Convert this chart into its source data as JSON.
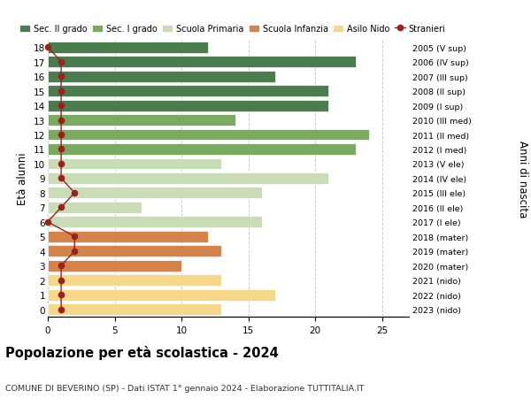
{
  "ages": [
    18,
    17,
    16,
    15,
    14,
    13,
    12,
    11,
    10,
    9,
    8,
    7,
    6,
    5,
    4,
    3,
    2,
    1,
    0
  ],
  "years": [
    "2005 (V sup)",
    "2006 (IV sup)",
    "2007 (III sup)",
    "2008 (II sup)",
    "2009 (I sup)",
    "2010 (III med)",
    "2011 (II med)",
    "2012 (I med)",
    "2013 (V ele)",
    "2014 (IV ele)",
    "2015 (III ele)",
    "2016 (II ele)",
    "2017 (I ele)",
    "2018 (mater)",
    "2019 (mater)",
    "2020 (mater)",
    "2021 (nido)",
    "2022 (nido)",
    "2023 (nido)"
  ],
  "values": [
    12,
    23,
    17,
    21,
    21,
    14,
    24,
    23,
    13,
    21,
    16,
    7,
    16,
    12,
    13,
    10,
    13,
    17,
    13
  ],
  "stranieri": [
    0,
    1,
    1,
    1,
    1,
    1,
    1,
    1,
    1,
    1,
    2,
    1,
    0,
    2,
    2,
    1,
    1,
    1,
    1
  ],
  "bar_colors": [
    "#4a7c4e",
    "#4a7c4e",
    "#4a7c4e",
    "#4a7c4e",
    "#4a7c4e",
    "#7aaa5e",
    "#7aaa5e",
    "#7aaa5e",
    "#c8ddb5",
    "#c8ddb5",
    "#c8ddb5",
    "#c8ddb5",
    "#c8ddb5",
    "#d4844a",
    "#d4844a",
    "#d4844a",
    "#f5d88a",
    "#f5d88a",
    "#f5d88a"
  ],
  "legend_labels": [
    "Sec. II grado",
    "Sec. I grado",
    "Scuola Primaria",
    "Scuola Infanzia",
    "Asilo Nido",
    "Stranieri"
  ],
  "legend_colors": [
    "#4a7c4e",
    "#7aaa5e",
    "#c8ddb5",
    "#d4844a",
    "#f5d88a",
    "#b22222"
  ],
  "stranieri_color": "#9b2020",
  "title": "Popolazione per età scolastica - 2024",
  "subtitle": "COMUNE DI BEVERINO (SP) - Dati ISTAT 1° gennaio 2024 - Elaborazione TUTTITALIA.IT",
  "ylabel_left": "Età alunni",
  "ylabel_right": "Anni di nascita",
  "xlim": [
    0,
    27
  ],
  "xticks": [
    0,
    5,
    10,
    15,
    20,
    25
  ],
  "bg_color": "#ffffff",
  "grid_color": "#cccccc"
}
